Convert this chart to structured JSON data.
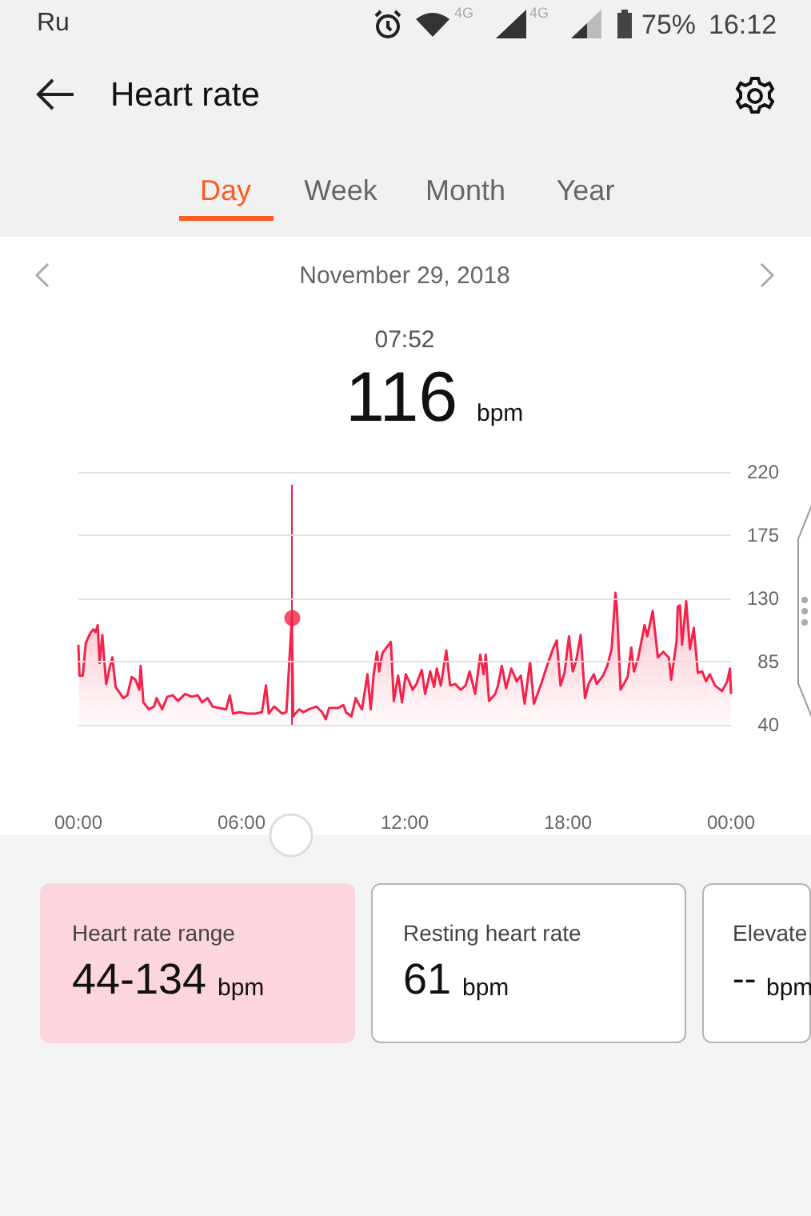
{
  "chart_data": {
    "type": "area",
    "title": "Heart rate",
    "subtitle": "November 29, 2018",
    "annotations": [
      "Ru",
      "4G",
      "4G",
      "75%",
      "16:12",
      "Day",
      "Week",
      "Month",
      "Year",
      "07:52",
      "116",
      "bpm",
      "Heart rate range",
      "44-134",
      "bpm",
      "Resting heart rate",
      "61",
      "bpm",
      "Elevate",
      "--",
      "bpm"
    ],
    "xlim": [
      0,
      24
    ],
    "xticks": [
      {
        "value": 0,
        "label": "00:00"
      },
      {
        "value": 6,
        "label": "06:00"
      },
      {
        "value": 12,
        "label": "12:00"
      },
      {
        "value": 18,
        "label": "18:00"
      },
      {
        "value": 24,
        "label": "00:00"
      }
    ],
    "ylim": [
      40,
      220
    ],
    "yticks": [
      40,
      85,
      130,
      175,
      220
    ],
    "grid": "y",
    "ref_lines": [
      {
        "axis": "x",
        "value": 7.867,
        "color": "#f5224a"
      }
    ],
    "series": [
      {
        "color": "#f5224a",
        "x": [
          0,
          0.04,
          0.16,
          0.27,
          0.43,
          0.55,
          0.63,
          0.71,
          0.78,
          0.88,
          1.02,
          1.14,
          1.25,
          1.37,
          1.51,
          1.65,
          1.8,
          1.96,
          2.1,
          2.24,
          2.29,
          2.39,
          2.59,
          2.78,
          2.88,
          3.08,
          3.27,
          3.47,
          3.67,
          3.92,
          4.16,
          4.39,
          4.55,
          4.75,
          4.94,
          5.18,
          5.43,
          5.57,
          5.69,
          5.92,
          6.22,
          6.51,
          6.75,
          6.9,
          7.0,
          7.2,
          7.49,
          7.65,
          7.85,
          7.9,
          7.98,
          8.12,
          8.27,
          8.47,
          8.76,
          8.96,
          9.1,
          9.22,
          9.55,
          9.75,
          9.84,
          10.04,
          10.2,
          10.3,
          10.43,
          10.63,
          10.75,
          10.86,
          10.98,
          11.06,
          11.18,
          11.33,
          11.49,
          11.6,
          11.76,
          11.9,
          12.04,
          12.16,
          12.29,
          12.43,
          12.63,
          12.75,
          12.94,
          13.08,
          13.18,
          13.33,
          13.53,
          13.67,
          13.86,
          14.06,
          14.24,
          14.39,
          14.59,
          14.78,
          14.9,
          14.98,
          15.1,
          15.33,
          15.43,
          15.57,
          15.73,
          15.92,
          16.12,
          16.27,
          16.41,
          16.61,
          16.75,
          17.0,
          17.2,
          17.45,
          17.59,
          17.73,
          17.88,
          18.04,
          18.18,
          18.31,
          18.47,
          18.63,
          18.76,
          18.96,
          19.06,
          19.29,
          19.45,
          19.61,
          19.75,
          19.8,
          19.94,
          20.2,
          20.33,
          20.43,
          20.59,
          20.82,
          20.92,
          21.12,
          21.31,
          21.51,
          21.71,
          21.8,
          22.0,
          22.04,
          22.12,
          22.2,
          22.35,
          22.49,
          22.63,
          22.78,
          22.94,
          23.08,
          23.22,
          23.41,
          23.67,
          23.86,
          23.96,
          24
        ],
        "values": [
          97,
          75,
          75,
          98,
          105,
          108,
          106,
          111,
          84,
          104,
          69,
          80,
          88,
          67,
          63,
          59,
          61,
          74,
          72,
          65,
          82,
          56,
          51,
          53,
          59,
          51,
          60,
          61,
          57,
          62,
          60,
          61,
          56,
          59,
          53,
          52,
          51,
          61,
          48,
          49,
          48,
          48,
          49,
          68,
          48,
          53,
          48,
          49,
          116,
          46,
          48,
          51,
          49,
          51,
          53,
          49,
          44,
          52,
          52,
          54,
          49,
          46,
          59,
          55,
          51,
          76,
          51,
          76,
          92,
          78,
          91,
          95,
          99,
          57,
          75,
          56,
          76,
          71,
          65,
          69,
          79,
          62,
          78,
          67,
          80,
          68,
          93,
          68,
          69,
          65,
          68,
          78,
          62,
          90,
          76,
          90,
          57,
          62,
          68,
          82,
          66,
          80,
          71,
          75,
          55,
          85,
          55,
          68,
          80,
          94,
          100,
          68,
          77,
          103,
          78,
          86,
          104,
          59,
          69,
          76,
          69,
          75,
          82,
          94,
          134,
          124,
          65,
          74,
          95,
          78,
          88,
          111,
          103,
          121,
          88,
          92,
          88,
          72,
          100,
          124,
          125,
          97,
          128,
          94,
          109,
          77,
          78,
          71,
          76,
          68,
          64,
          71,
          80,
          62
        ]
      },
      {
        "type": "scatter",
        "color": "#f5224a",
        "marker": "circle",
        "x": [
          7.867
        ],
        "values": [
          116
        ]
      }
    ]
  }
}
